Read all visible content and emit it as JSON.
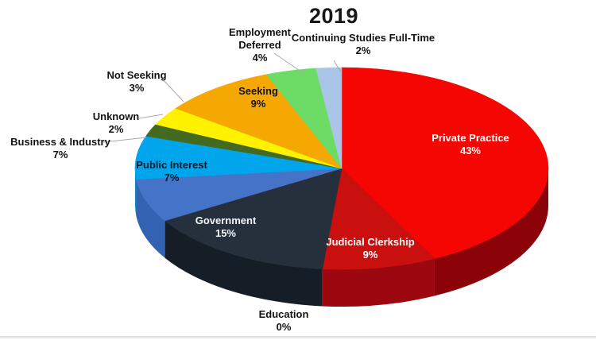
{
  "chart_data": {
    "type": "pie",
    "title": "2019",
    "style": "3d-exploded-none",
    "direction": "clockwise",
    "start_angle_deg": 0,
    "legend": "none",
    "background": "#ffffff",
    "slices": [
      {
        "label": "Private Practice",
        "percent": 43,
        "display": "43%",
        "color": "#f60603",
        "side_color": "#8b0308",
        "label_placement": "inside",
        "label_color": "#ffffff"
      },
      {
        "label": "Judicial Clerkship",
        "percent": 9,
        "display": "9%",
        "color": "#c9100f",
        "side_color": "#9c0710",
        "label_placement": "inside",
        "label_color": "#ffffff"
      },
      {
        "label": "Education",
        "percent": 0,
        "display": "0%",
        "color": "#1f2733",
        "side_color": "#141b24",
        "label_placement": "outside",
        "label_color": "#131313"
      },
      {
        "label": "Government",
        "percent": 15,
        "display": "15%",
        "color": "#262f3c",
        "side_color": "#151d27",
        "label_placement": "inside",
        "label_color": "#f4f6f8"
      },
      {
        "label": "Public Interest",
        "percent": 7,
        "display": "7%",
        "color": "#4473c8",
        "side_color": "#3462b2",
        "label_placement": "inside",
        "label_color": "#0b1624"
      },
      {
        "label": "Business & Industry",
        "percent": 7,
        "display": "7%",
        "color": "#00a5ec",
        "side_color": "#0887c4",
        "label_placement": "outside",
        "label_color": "#131313"
      },
      {
        "label": "Unknown",
        "percent": 2,
        "display": "2%",
        "color": "#436a1e",
        "side_color": "#2f4b15",
        "label_placement": "outside",
        "label_color": "#131313"
      },
      {
        "label": "Not Seeking",
        "percent": 3,
        "display": "3%",
        "color": "#fef200",
        "side_color": "#c8bd00",
        "label_placement": "outside",
        "label_color": "#131313"
      },
      {
        "label": "Seeking",
        "percent": 9,
        "display": "9%",
        "color": "#f5a802",
        "side_color": "#c08203",
        "label_placement": "inside",
        "label_color": "#131313"
      },
      {
        "label": "Employment Deferred",
        "percent": 4,
        "display": "4%",
        "color": "#6cdc66",
        "side_color": "#4fb04c",
        "label_placement": "outside",
        "label_color": "#131313"
      },
      {
        "label": "Continuing Studies Full-Time",
        "percent": 2,
        "display": "2%",
        "color": "#abc5e8",
        "side_color": "#8aa6c8",
        "label_placement": "outside",
        "label_color": "#131313"
      }
    ]
  }
}
